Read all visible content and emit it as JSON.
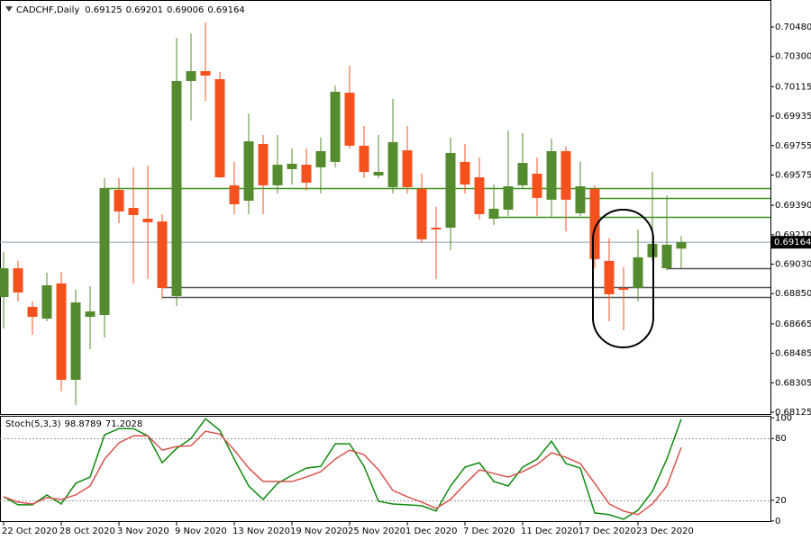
{
  "chart_data": [
    {
      "type": "candlestick",
      "title": "CADCHF,Daily",
      "categories": [
        "22 Oct 2020",
        null,
        null,
        null,
        "28 Oct 2020",
        null,
        null,
        null,
        "3 Nov 2020",
        null,
        null,
        null,
        "9 Nov 2020",
        null,
        null,
        null,
        "13 Nov 2020",
        null,
        null,
        null,
        "19 Nov 2020",
        null,
        null,
        null,
        "25 Nov 2020",
        null,
        null,
        null,
        "1 Dec 2020",
        null,
        null,
        null,
        "7 Dec 2020",
        null,
        null,
        null,
        "11 Dec 2020",
        null,
        null,
        null,
        "17 Dec 2020",
        null,
        null,
        null,
        "23 Dec 2020",
        null,
        null,
        null
      ],
      "open": [
        0.68829,
        0.69005,
        0.68769,
        0.68697,
        0.68912,
        0.68323,
        0.68708,
        0.68719,
        0.69484,
        0.69374,
        0.69308,
        0.69291,
        0.68835,
        0.7015,
        0.7021,
        0.70161,
        0.69512,
        0.69418,
        0.69765,
        0.69512,
        0.69611,
        0.69638,
        0.69622,
        0.69655,
        0.70078,
        0.69754,
        0.69572,
        0.69501,
        0.69726,
        0.6949,
        0.69253,
        0.69253,
        0.69655,
        0.69561,
        0.69308,
        0.69363,
        0.69512,
        0.69583,
        0.69424,
        0.69721,
        0.69341,
        0.6949,
        0.6905,
        0.68884,
        0.68884,
        0.69072,
        0.69005,
        0.69125
      ],
      "high": [
        0.69105,
        0.6905,
        0.68802,
        0.68978,
        0.68983,
        0.68873,
        0.68895,
        0.69556,
        0.69556,
        0.69622,
        0.69633,
        0.69336,
        0.70414,
        0.70441,
        0.70508,
        0.70205,
        0.69655,
        0.69952,
        0.6982,
        0.6982,
        0.69737,
        0.69737,
        0.69803,
        0.70122,
        0.70243,
        0.69875,
        0.6982,
        0.7004,
        0.69875,
        0.69583,
        0.6938,
        0.69803,
        0.69765,
        0.69682,
        0.69517,
        0.69847,
        0.69831,
        0.69682,
        0.69798,
        0.69748,
        0.69655,
        0.69512,
        0.69187,
        0.69011,
        0.69242,
        0.69594,
        0.69451,
        0.69201
      ],
      "low": [
        0.68637,
        0.68802,
        0.68598,
        0.68681,
        0.68252,
        0.68169,
        0.6851,
        0.68582,
        0.69281,
        0.68912,
        0.68939,
        0.68818,
        0.68774,
        0.69908,
        0.70029,
        0.69556,
        0.69336,
        0.69336,
        0.69336,
        0.69462,
        0.69517,
        0.69479,
        0.69462,
        0.69622,
        0.69737,
        0.69556,
        0.69556,
        0.69462,
        0.69462,
        0.6916,
        0.68939,
        0.69116,
        0.69462,
        0.69303,
        0.6927,
        0.69325,
        0.6949,
        0.69325,
        0.69314,
        0.69231,
        0.69325,
        0.69005,
        0.68681,
        0.68626,
        0.68802,
        0.6905,
        0.68994,
        0.69006
      ],
      "close": [
        0.69005,
        0.68857,
        0.68708,
        0.68901,
        0.68323,
        0.68796,
        0.68741,
        0.69495,
        0.69352,
        0.6933,
        0.69286,
        0.68884,
        0.7015,
        0.7021,
        0.70183,
        0.69561,
        0.69396,
        0.69781,
        0.69512,
        0.69638,
        0.69644,
        0.69528,
        0.69721,
        0.70084,
        0.69754,
        0.69594,
        0.69594,
        0.69776,
        0.69501,
        0.69182,
        0.69242,
        0.6971,
        0.69517,
        0.69336,
        0.69369,
        0.69506,
        0.69649,
        0.69435,
        0.69721,
        0.69424,
        0.69506,
        0.69061,
        0.68846,
        0.68873,
        0.69072,
        0.69154,
        0.69149,
        0.69164
      ],
      "up_color": "#558b2f",
      "down_color": "#f4511e",
      "ylim": [
        0.68114,
        0.70645
      ],
      "yticks": [
        {
          "value": 0.7048,
          "label": "0.70480"
        },
        {
          "value": 0.703,
          "label": "0.70300"
        },
        0.70115,
        0.69935,
        0.69755,
        0.69575,
        {
          "value": 0.6939,
          "label": "0.69390"
        },
        {
          "value": 0.6921,
          "label": "0.69210"
        },
        {
          "value": 0.6903,
          "label": "0.69030"
        },
        {
          "value": 0.6885,
          "label": "0.68850"
        },
        0.68665,
        0.68485,
        0.68305,
        0.68125
      ],
      "levels": [
        {
          "value": 0.69495,
          "from": 7,
          "color": "#3f8f1f"
        },
        {
          "value": 0.69435,
          "from": 40,
          "color": "#3f8f1f"
        },
        {
          "value": 0.69319,
          "from": 34,
          "color": "#3f8f1f"
        },
        {
          "value": 0.69005,
          "from": 46,
          "color": "#555555"
        },
        {
          "value": 0.6889,
          "from": 11,
          "color": "#555555"
        },
        {
          "value": 0.68829,
          "from": 11,
          "color": "#555555"
        }
      ]
    },
    {
      "type": "line",
      "title": "Stoch(5,3,3)",
      "series": [
        {
          "color": "#0f8a0f",
          "values": [
            23.5,
            15.7,
            15.7,
            25.2,
            16.5,
            36.5,
            42.6,
            83.5,
            89.6,
            89.6,
            82.6,
            56.5,
            70.4,
            80.0,
            99.1,
            87.8,
            60.0,
            33.9,
            20.9,
            36.5,
            44.3,
            51.3,
            53.0,
            74.8,
            74.8,
            53.0,
            19.1,
            16.5,
            15.7,
            14.8,
            9.6,
            33.9,
            52.2,
            56.5,
            38.3,
            33.9,
            52.2,
            60.0,
            77.4,
            55.7,
            51.3,
            7.8,
            6.1,
            1.7,
            10.4,
            28.7,
            60.0,
            98.8789
          ]
        },
        {
          "color": "#d9534f",
          "values": [
            23.5,
            18.3,
            16.5,
            22.6,
            20.9,
            25.2,
            33.9,
            60.0,
            75.7,
            82.6,
            82.6,
            68.7,
            72.2,
            73.0,
            87.0,
            84.3,
            68.7,
            51.3,
            38.3,
            38.3,
            38.3,
            42.6,
            47.8,
            60.0,
            68.7,
            64.3,
            49.6,
            29.6,
            23.5,
            18.3,
            12.2,
            20.9,
            35.7,
            49.6,
            46.1,
            42.6,
            47.8,
            54.8,
            66.1,
            61.7,
            55.7,
            36.5,
            16.5,
            9.6,
            6.1,
            16.5,
            33.9,
            71.2028
          ]
        }
      ],
      "ylim": [
        -1,
        102
      ],
      "yticks": [
        100,
        80,
        20,
        0
      ],
      "levels": [
        80,
        20
      ]
    }
  ]
}
